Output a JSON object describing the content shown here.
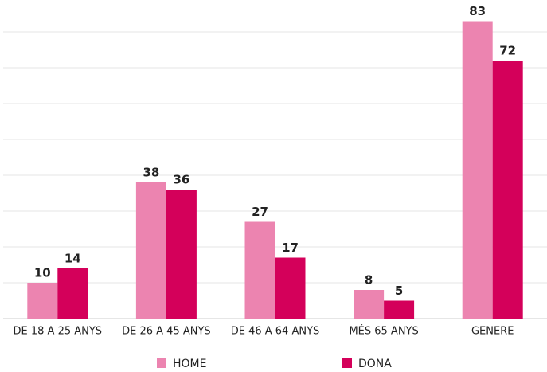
{
  "chart_data": {
    "type": "bar",
    "categories": [
      "DE 18 A 25 ANYS",
      "DE 26 A 45 ANYS",
      "DE 46 A 64 ANYS",
      "MÉS 65 ANYS",
      "GENERE"
    ],
    "series": [
      {
        "name": "HOME",
        "color": "#ec84b0",
        "values": [
          10,
          38,
          27,
          8,
          83
        ]
      },
      {
        "name": "DONA",
        "color": "#d4005a",
        "values": [
          14,
          36,
          17,
          5,
          72
        ]
      }
    ],
    "ylim": [
      0,
      88
    ],
    "yticks": [
      0,
      10,
      20,
      30,
      40,
      50,
      60,
      70,
      80
    ],
    "grid": true,
    "legend": "bottom"
  }
}
